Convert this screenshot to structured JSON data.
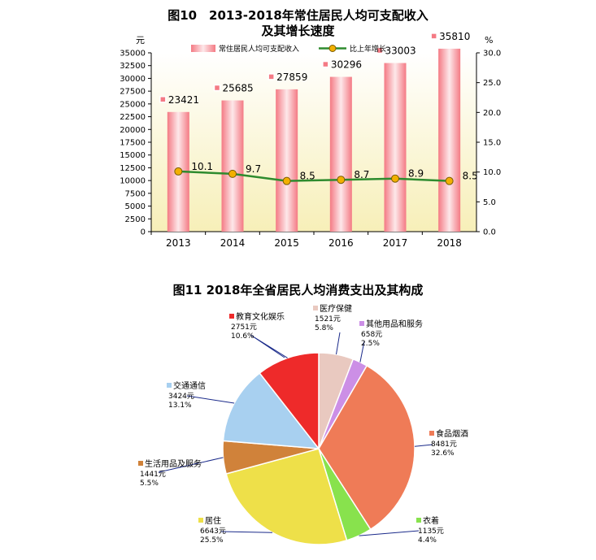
{
  "chart_data": [
    {
      "type": "bar",
      "title": "图10　2013-2018年常住居民人均可支配收入",
      "subtitle": "及其增长速度",
      "categories": [
        "2013",
        "2014",
        "2015",
        "2016",
        "2017",
        "2018"
      ],
      "series": [
        {
          "name": "常住居民人均可支配收入",
          "type": "bar",
          "axis": "left",
          "values": [
            23421,
            25685,
            27859,
            30296,
            33003,
            35810
          ]
        },
        {
          "name": "比上年增长",
          "type": "line",
          "axis": "right",
          "values": [
            10.1,
            9.7,
            8.5,
            8.7,
            8.9,
            8.5
          ]
        }
      ],
      "y_left": {
        "unit": "元",
        "ylim": [
          0,
          35000
        ],
        "ticks": [
          0,
          2500,
          5000,
          7500,
          10000,
          12500,
          15000,
          17500,
          20000,
          22500,
          25000,
          27500,
          30000,
          32500,
          35000
        ]
      },
      "y_right": {
        "unit": "%",
        "ylim": [
          0,
          30
        ],
        "ticks": [
          "0.0",
          "5.0",
          "10.0",
          "15.0",
          "20.0",
          "25.0",
          "30.0"
        ]
      },
      "legend_position": "top",
      "grid": false,
      "colors": {
        "bar": "#f47a84",
        "bar_light": "#fde8ea",
        "line": "#2e8b2e",
        "marker": "#f2b000"
      }
    },
    {
      "type": "pie",
      "title": "图11  2018年全省居民人均消费支出及其构成",
      "slices": [
        {
          "label": "医疗保健",
          "value_text": "1521元",
          "value": 1521,
          "percent": "5.8%",
          "color": "#e9c9c0"
        },
        {
          "label": "其他用品和服务",
          "value_text": "658元",
          "value": 658,
          "percent": "2.5%",
          "color": "#cc8fe6"
        },
        {
          "label": "食品烟酒",
          "value_text": "8481元",
          "value": 8481,
          "percent": "32.6%",
          "color": "#ef7b57"
        },
        {
          "label": "衣着",
          "value_text": "1135元",
          "value": 1135,
          "percent": "4.4%",
          "color": "#88e24d"
        },
        {
          "label": "居住",
          "value_text": "6643元",
          "value": 6643,
          "percent": "25.5%",
          "color": "#eee049"
        },
        {
          "label": "生活用品及服务",
          "value_text": "1441元",
          "value": 1441,
          "percent": "5.5%",
          "color": "#d0823a"
        },
        {
          "label": "交通通信",
          "value_text": "3424元",
          "value": 3424,
          "percent": "13.1%",
          "color": "#a8d0f0"
        },
        {
          "label": "教育文化娱乐",
          "value_text": "2751元",
          "value": 2751,
          "percent": "10.6%",
          "color": "#ee2a2a"
        }
      ]
    }
  ]
}
